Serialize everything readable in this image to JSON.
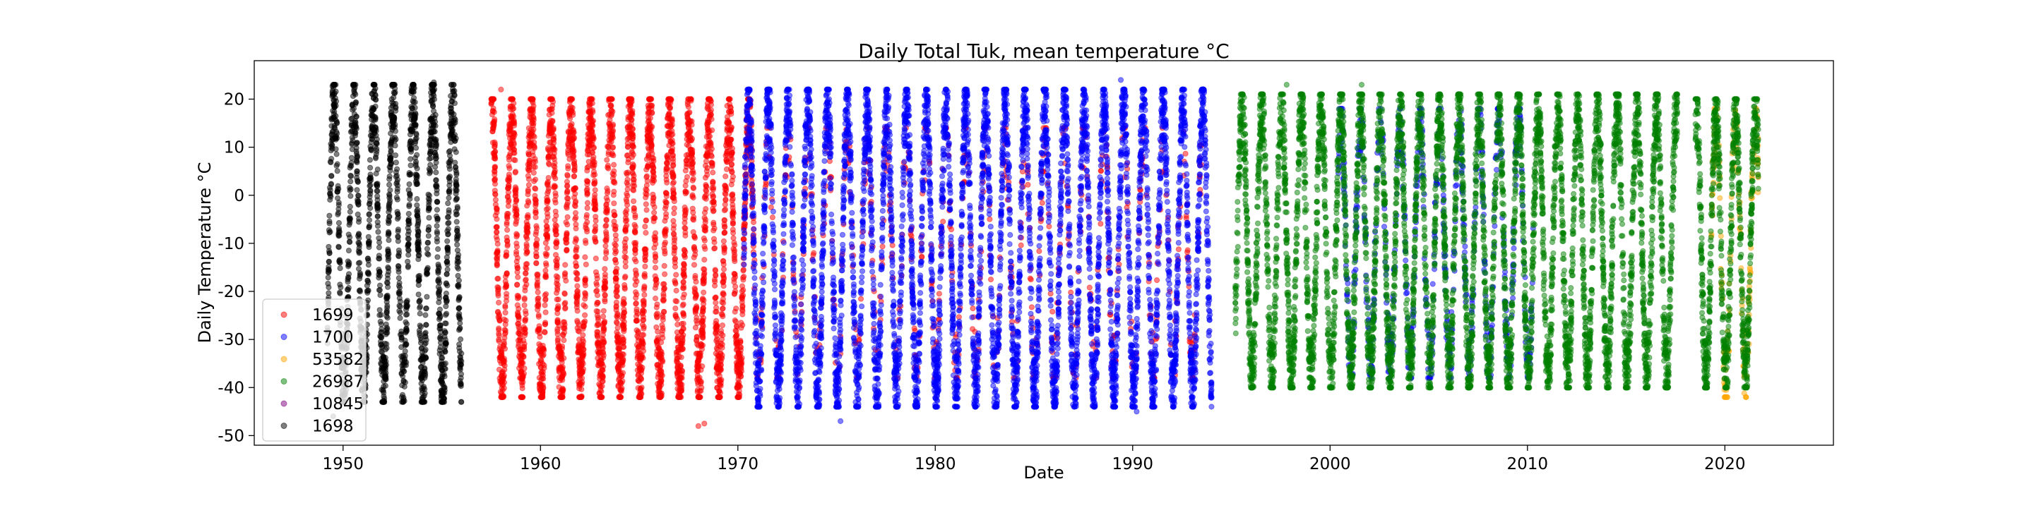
{
  "chart_data": {
    "type": "scatter",
    "title": "Daily Total Tuk, mean temperature °C",
    "xlabel": "Date",
    "ylabel": "Daily Temperature °C",
    "xlim": [
      1945.5,
      2025.5
    ],
    "ylim": [
      -52,
      28
    ],
    "x_ticks": [
      1950,
      1960,
      1970,
      1980,
      1990,
      2000,
      2010,
      2020
    ],
    "y_ticks": [
      -50,
      -40,
      -30,
      -20,
      -10,
      0,
      10,
      20
    ],
    "legend": {
      "placement": "lower-left"
    },
    "grid": false,
    "series": [
      {
        "name": "1699",
        "color": "#ff0000",
        "opacity": 0.5,
        "segments": [
          {
            "years": [
              1957.5,
              1970.8
            ],
            "min": -42,
            "max": 20,
            "extra": [
              [
                1958.0,
                22
              ],
              [
                1968.0,
                -48
              ],
              [
                1968.3,
                -47.5
              ]
            ]
          },
          {
            "years": [
              1970.8,
              1993.5
            ],
            "min": -38,
            "max": 14,
            "density": 0.12
          }
        ]
      },
      {
        "name": "1700",
        "color": "#0000ff",
        "opacity": 0.5,
        "segments": [
          {
            "years": [
              1970.3,
              1994.0
            ],
            "min": -44,
            "max": 22,
            "extra": [
              [
                1975.2,
                -47
              ],
              [
                1989.4,
                24
              ],
              [
                1990.2,
                -45
              ],
              [
                1994.0,
                -42
              ]
            ]
          },
          {
            "years": [
              2000.4,
              2010.3
            ],
            "min": -38,
            "max": 18,
            "density": 0.3
          }
        ]
      },
      {
        "name": "53582",
        "color": "#ffa500",
        "opacity": 0.5,
        "segments": [
          {
            "years": [
              2019.3,
              2021.7
            ],
            "min": -42,
            "max": 18,
            "density": 0.25
          }
        ]
      },
      {
        "name": "26987",
        "color": "#008000",
        "opacity": 0.5,
        "segments": [
          {
            "years": [
              1995.2,
              2017.6
            ],
            "min": -40,
            "max": 21,
            "extra": [
              [
                1997.8,
                23
              ],
              [
                2001.6,
                23
              ]
            ]
          },
          {
            "years": [
              2018.5,
              2021.7
            ],
            "min": -40,
            "max": 20
          }
        ]
      },
      {
        "name": "10845",
        "color": "#800080",
        "opacity": 0.5,
        "segments": []
      },
      {
        "name": "1698",
        "color": "#000000",
        "opacity": 0.5,
        "segments": [
          {
            "years": [
              1949.2,
              1956.0
            ],
            "min": -43,
            "max": 23,
            "extra": [
              [
                1949.5,
                -46
              ],
              [
                1954.6,
                23.5
              ]
            ]
          }
        ]
      }
    ]
  }
}
